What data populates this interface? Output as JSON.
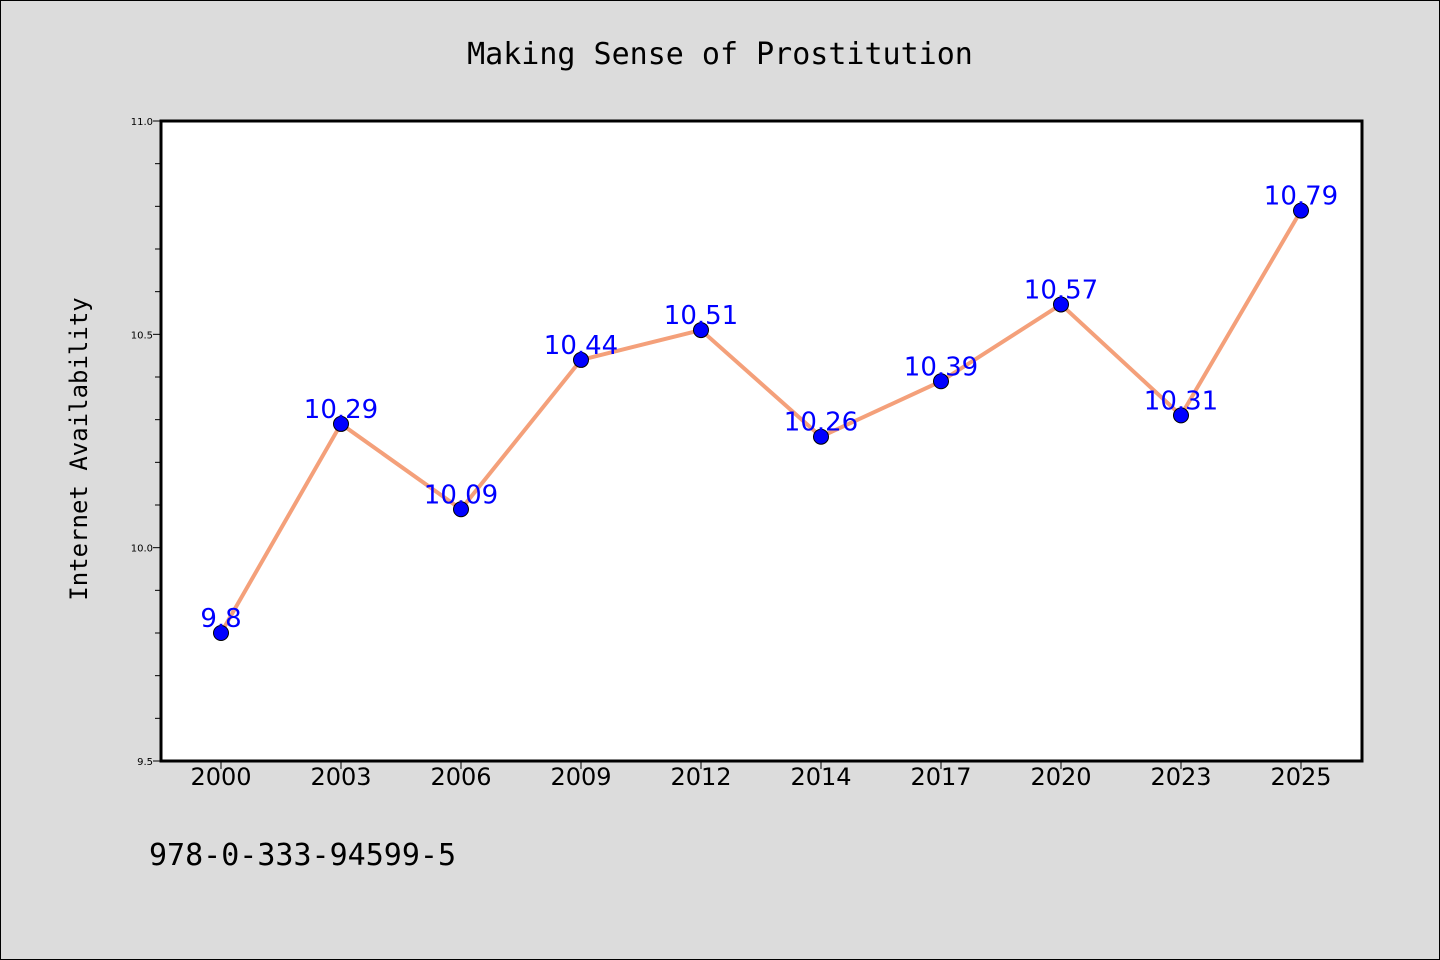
{
  "chart_data": {
    "type": "line",
    "title": "Making Sense of Prostitution",
    "xlabel": "",
    "ylabel": "Internet Availability",
    "categories": [
      "2000",
      "2003",
      "2006",
      "2009",
      "2012",
      "2014",
      "2017",
      "2020",
      "2023",
      "2025"
    ],
    "series": [
      {
        "values": [
          9.8,
          10.29,
          10.09,
          10.44,
          10.51,
          10.26,
          10.39,
          10.57,
          10.31,
          10.79
        ],
        "labels": [
          "9.8",
          "10.29",
          "10.09",
          "10.44",
          "10.51",
          "10.26",
          "10.39",
          "10.57",
          "10.31",
          "10.79"
        ]
      }
    ],
    "ylim": [
      9.5,
      11.0
    ],
    "yticks": [
      "9.5",
      "10.0",
      "10.5",
      "11.0"
    ],
    "grid": false,
    "line_color": "#f4a07a",
    "marker_color": "#0000ff",
    "label_color": "#0000ff"
  },
  "footer": {
    "isbn": "978-0-333-94599-5"
  }
}
